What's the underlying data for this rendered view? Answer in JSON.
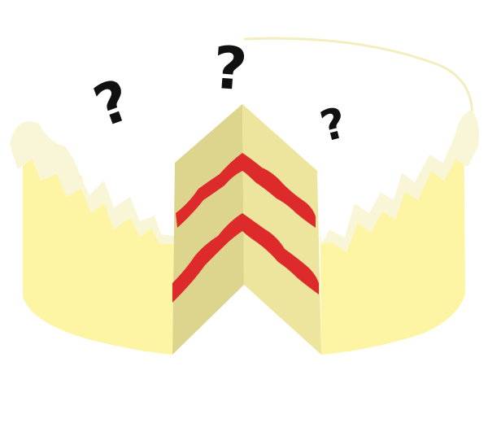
{
  "illustration": {
    "question_marks": [
      "?",
      "?",
      "?"
    ],
    "colors": {
      "cake_body": "#fdf5a3",
      "cake_shadow": "#f4eb8f",
      "frosting": "#ffffff",
      "frosting_drip_shade": "#f8f6d6",
      "slice_left_face": "#ddd48e",
      "slice_right_face": "#ede59d",
      "jam_layer": "#dd2a2a",
      "question_mark": "#111111"
    }
  }
}
